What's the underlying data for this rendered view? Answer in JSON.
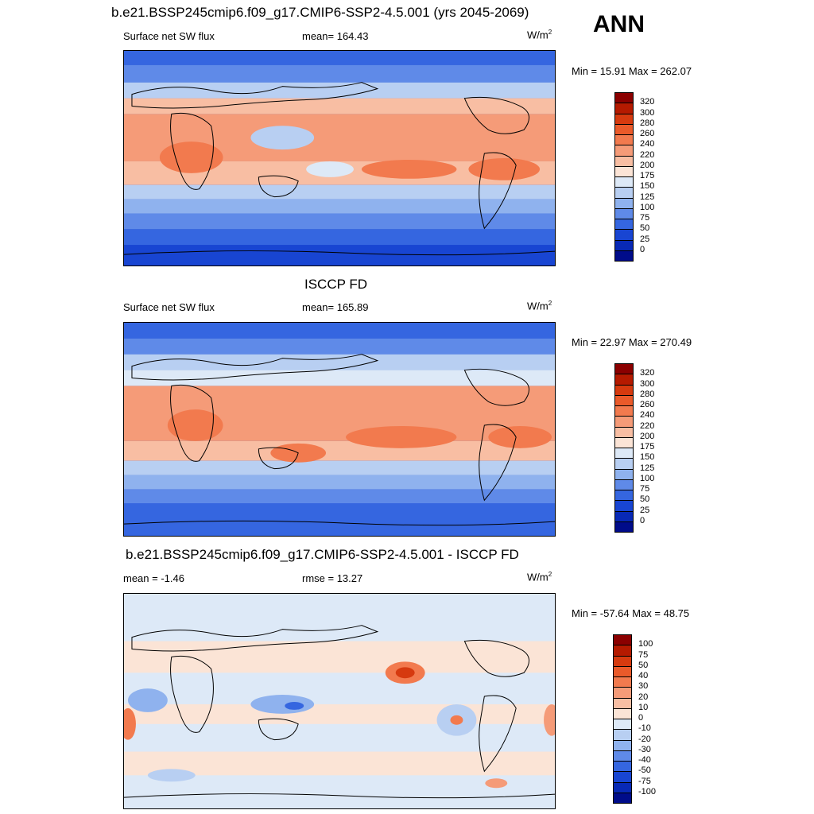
{
  "title": "b.e21.BSSP245cmip6.f09_g17.CMIP6-SSP2-4.5.001 (yrs 2045-2069)",
  "season": "ANN",
  "unit": "W/m",
  "unit_sup": "2",
  "panels": [
    {
      "heading": "",
      "left_label": "Surface net SW flux",
      "center_label": "mean= 164.43",
      "minmax": "Min =  15.91 Max = 262.07",
      "kind": "model"
    },
    {
      "heading": "ISCCP FD",
      "left_label": "Surface net SW flux",
      "center_label": "mean= 165.89",
      "minmax": "Min =  22.97 Max = 270.49",
      "kind": "obs"
    },
    {
      "heading": "b.e21.BSSP245cmip6.f09_g17.CMIP6-SSP2-4.5.001 - ISCCP FD",
      "left_label": "mean =  -1.46",
      "center_label": "rmse =  13.27",
      "minmax": "Min = -57.64 Max =  48.75",
      "kind": "diff"
    }
  ],
  "colorbars": {
    "abs": {
      "labels": [
        "320",
        "300",
        "280",
        "260",
        "240",
        "220",
        "200",
        "175",
        "150",
        "125",
        "100",
        "75",
        "50",
        "25",
        "0"
      ],
      "colors": [
        "#8b0000",
        "#b51a00",
        "#d63a0f",
        "#ea5a2a",
        "#f27a4e",
        "#f59b78",
        "#f8bea3",
        "#fbe4d6",
        "#dde9f7",
        "#b8cff2",
        "#8fb2ee",
        "#5f8ae8",
        "#3566e0",
        "#1845d2",
        "#0829b6",
        "#000c8a"
      ]
    },
    "diff": {
      "labels": [
        "100",
        "75",
        "50",
        "40",
        "30",
        "20",
        "10",
        "0",
        "-10",
        "-20",
        "-30",
        "-40",
        "-50",
        "-75",
        "-100"
      ],
      "colors": [
        "#8b0000",
        "#b51a00",
        "#d63a0f",
        "#ea5a2a",
        "#f27a4e",
        "#f59b78",
        "#f8bea3",
        "#fbe4d6",
        "#dde9f7",
        "#b8cff2",
        "#8fb2ee",
        "#5f8ae8",
        "#3566e0",
        "#1845d2",
        "#0829b6",
        "#000c8a"
      ]
    }
  }
}
